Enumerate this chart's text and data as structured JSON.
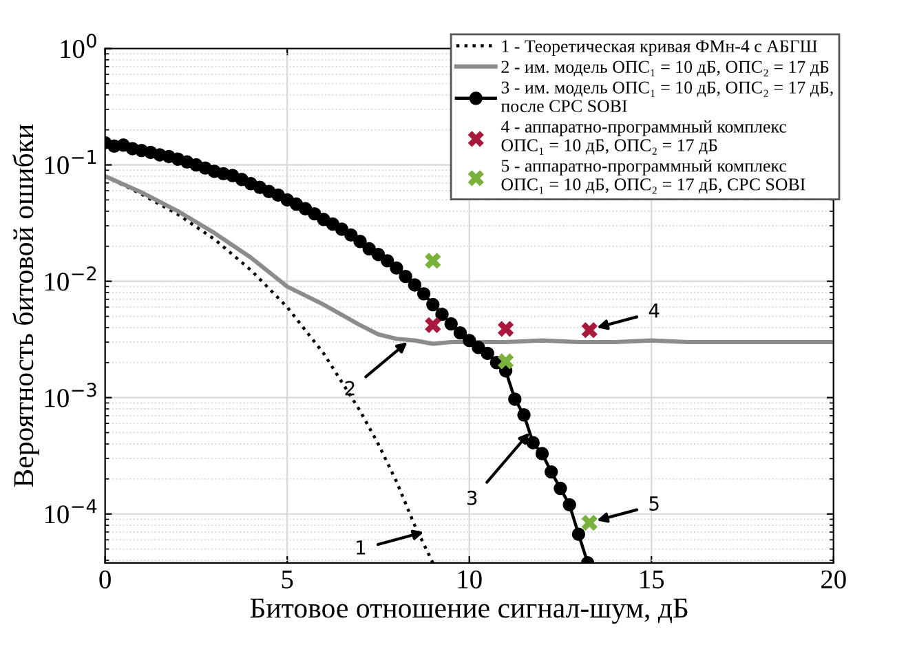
{
  "chart_data": {
    "type": "line",
    "xlabel": "Битовое отношение сигнал-шум, дБ",
    "ylabel": "Вероятность битовой ошибки",
    "log": "y",
    "grid": true,
    "legend": "top right",
    "xlim": [
      0,
      20
    ],
    "xticks": [
      0,
      5,
      10,
      15,
      20
    ],
    "ylim": [
      3.8e-05,
      1
    ],
    "yticks": [
      {
        "value": 1,
        "label": "10$^{0}$"
      },
      {
        "value": 0.1,
        "label": "10$^{−1}$"
      },
      {
        "value": 0.01,
        "label": "10$^{−2}$"
      },
      {
        "value": 0.001,
        "label": "10$^{−3}$"
      },
      {
        "value": 0.0001,
        "label": "10$^{−4}$"
      }
    ],
    "series": [
      {
        "name": "1 - Теоретическая кривая ФМн-4 с АБГШ",
        "color": "#000000",
        "line_style": "dotted",
        "marker": "none",
        "x": [
          0,
          1,
          2,
          3,
          4,
          5,
          6,
          7,
          7.5,
          8,
          8.5,
          9
        ],
        "values": [
          0.08,
          0.056,
          0.0375,
          0.023,
          0.0125,
          0.006,
          0.0024,
          0.00077,
          0.0004,
          0.00019,
          8e-05,
          3.8e-05
        ]
      },
      {
        "name": "2 - им. модель ОПС₁ = 10 дБ, ОПС₂ = 17 дБ",
        "color": "#8c8c8c",
        "line_style": "solid",
        "marker": "none",
        "x": [
          0,
          1,
          2,
          3,
          4,
          5,
          6,
          7,
          7.5,
          8,
          8.5,
          9,
          9.5,
          10,
          11,
          12,
          13,
          14,
          15,
          16,
          17,
          18,
          19,
          20
        ],
        "values": [
          0.08,
          0.058,
          0.04,
          0.026,
          0.016,
          0.009,
          0.0063,
          0.0042,
          0.0035,
          0.0032,
          0.0031,
          0.0029,
          0.003,
          0.003,
          0.003,
          0.0031,
          0.003,
          0.003,
          0.0031,
          0.003,
          0.003,
          0.003,
          0.003,
          0.003
        ]
      },
      {
        "name": "3 - им. модель ОПС₁ = 10 дБ, ОПС₂ = 17 дБ,\nпосле СРС SOBI",
        "color": "#000000",
        "line_style": "solid",
        "marker": "circle",
        "x": [
          0,
          0.25,
          0.5,
          0.75,
          1,
          1.25,
          1.5,
          1.75,
          2,
          2.25,
          2.5,
          2.75,
          3,
          3.25,
          3.5,
          3.75,
          4,
          4.25,
          4.5,
          4.75,
          5,
          5.25,
          5.5,
          5.75,
          6,
          6.25,
          6.5,
          6.75,
          7,
          7.25,
          7.5,
          7.75,
          8,
          8.25,
          8.5,
          8.75,
          9,
          9.25,
          9.5,
          9.75,
          10,
          10.25,
          10.5,
          10.75,
          11,
          11.25,
          11.5,
          11.75,
          12,
          12.25,
          12.5,
          12.75,
          13,
          13.25
        ],
        "values": [
          0.155,
          0.145,
          0.148,
          0.138,
          0.133,
          0.128,
          0.122,
          0.118,
          0.112,
          0.106,
          0.1,
          0.094,
          0.088,
          0.084,
          0.081,
          0.075,
          0.069,
          0.064,
          0.059,
          0.055,
          0.05,
          0.046,
          0.042,
          0.038,
          0.034,
          0.031,
          0.028,
          0.025,
          0.022,
          0.019,
          0.017,
          0.015,
          0.013,
          0.011,
          0.0093,
          0.0078,
          0.0063,
          0.0052,
          0.0043,
          0.0036,
          0.0031,
          0.0027,
          0.0024,
          0.002,
          0.0017,
          0.00097,
          0.00071,
          0.00041,
          0.00033,
          0.00023,
          0.000166,
          0.00012,
          6.7e-05,
          3.8e-05
        ]
      },
      {
        "name": "4 - аппаратно-программный комплекс\nОПС₁ = 10 дБ, ОПС₂ = 17 дБ",
        "type": "scatter",
        "color": "#a8193c",
        "marker": "cross",
        "x": [
          9,
          11,
          13.3
        ],
        "values": [
          0.0042,
          0.0039,
          0.0038
        ]
      },
      {
        "name": "5 - аппаратно-программный комплекс\nОПС₁ = 10 дБ, ОПС₂ = 17 дБ, СРС SOBI",
        "type": "scatter",
        "color": "#7ab13a",
        "marker": "cross",
        "x": [
          9,
          11,
          13.3
        ],
        "values": [
          0.015,
          0.00205,
          8.4e-05
        ]
      }
    ],
    "annotations": [
      {
        "text": "1",
        "x": 8.75,
        "y": 7e-05
      },
      {
        "text": "2",
        "x": 8.3,
        "y": 0.003
      },
      {
        "text": "3",
        "x": 11.65,
        "y": 0.0005
      },
      {
        "text": "4",
        "x": 13.5,
        "y": 0.004
      },
      {
        "text": "5",
        "x": 13.5,
        "y": 8.8e-05
      }
    ]
  }
}
